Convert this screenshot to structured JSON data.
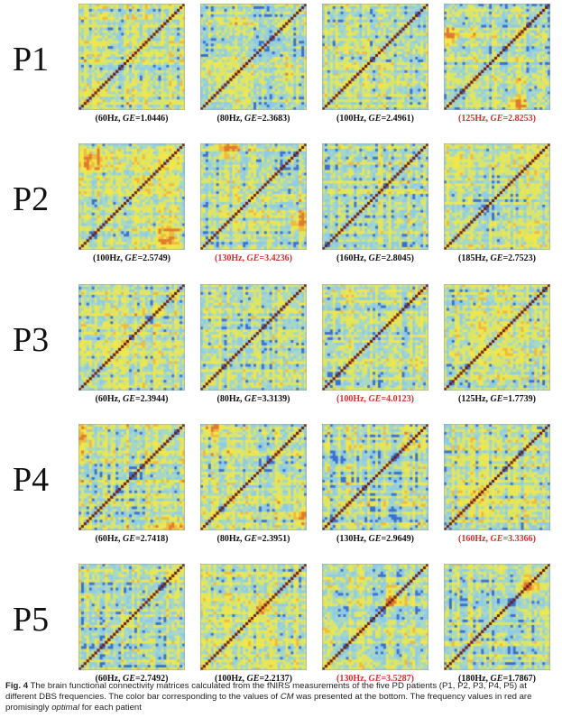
{
  "figure": {
    "label": "Fig. 4",
    "caption_parts": {
      "p1": "The brain functional connectivity matrices calculated from the fNIRS measurements of the five PD patients (P1, P2, P3, P4, P5) at different DBS frequencies. The color bar corresponding to the values of ",
      "cm": "CM",
      "p2": " was presented at the bottom. The frequency values in red are promisingly ",
      "optimal": "optimal",
      "p3": " for each patient"
    }
  },
  "ge_label": "GE",
  "patients": [
    {
      "label": "P1",
      "panels": [
        {
          "freq": "(60Hz, ",
          "ge": "=1.0446)",
          "optimal": false,
          "style": "p60"
        },
        {
          "freq": "(80Hz, ",
          "ge": "=2.3683)",
          "optimal": false,
          "style": "p80"
        },
        {
          "freq": "(100Hz, ",
          "ge": "=2.4961)",
          "optimal": false,
          "style": "p100"
        },
        {
          "freq": "(125Hz, ",
          "ge": "=2.8253)",
          "optimal": true,
          "style": "p125"
        }
      ]
    },
    {
      "label": "P2",
      "panels": [
        {
          "freq": "(100Hz, ",
          "ge": "=2.5749)",
          "optimal": false,
          "style": "p2a"
        },
        {
          "freq": "(130Hz, ",
          "ge": "=3.4236)",
          "optimal": true,
          "style": "p2b"
        },
        {
          "freq": "(160Hz, ",
          "ge": "=2.8045)",
          "optimal": false,
          "style": "p2c"
        },
        {
          "freq": "(185Hz, ",
          "ge": "=2.7523)",
          "optimal": false,
          "style": "p2d"
        }
      ]
    },
    {
      "label": "P3",
      "panels": [
        {
          "freq": "(60Hz, ",
          "ge": "=2.3944)",
          "optimal": false,
          "style": "p3a"
        },
        {
          "freq": "(80Hz, ",
          "ge": "=3.3139)",
          "optimal": false,
          "style": "p3b"
        },
        {
          "freq": "(100Hz, ",
          "ge": "=4.0123)",
          "optimal": true,
          "style": "p3c"
        },
        {
          "freq": "(125Hz, ",
          "ge": "=1.7739)",
          "optimal": false,
          "style": "p3d"
        }
      ]
    },
    {
      "label": "P4",
      "panels": [
        {
          "freq": "(60Hz, ",
          "ge": "=2.7418)",
          "optimal": false,
          "style": "p4a"
        },
        {
          "freq": "(80Hz, ",
          "ge": "=2.3951)",
          "optimal": false,
          "style": "p4b"
        },
        {
          "freq": "(130Hz, ",
          "ge": "=2.9649)",
          "optimal": false,
          "style": "p4c"
        },
        {
          "freq": "(160Hz, ",
          "ge": "=3.3366)",
          "optimal": true,
          "style": "p4d"
        }
      ]
    },
    {
      "label": "P5",
      "panels": [
        {
          "freq": "(60Hz, ",
          "ge": "=2.7492)",
          "optimal": false,
          "style": "p5a"
        },
        {
          "freq": "(100Hz, ",
          "ge": "=2.2137)",
          "optimal": false,
          "style": "p5b"
        },
        {
          "freq": "(130Hz, ",
          "ge": "=3.5287)",
          "optimal": true,
          "style": "p5c"
        },
        {
          "freq": "(180Hz, ",
          "ge": "=1.7867)",
          "optimal": false,
          "style": "p5d"
        }
      ]
    }
  ],
  "colors": {
    "optimal_text": "#d0312d",
    "matrix_palette": [
      "#3b6fd0",
      "#8ecbe6",
      "#a7d7c5",
      "#d9e56a",
      "#f1e74a",
      "#f0b93c",
      "#e07a2f",
      "#b0281c"
    ],
    "diagonal": "#6b1a12"
  }
}
